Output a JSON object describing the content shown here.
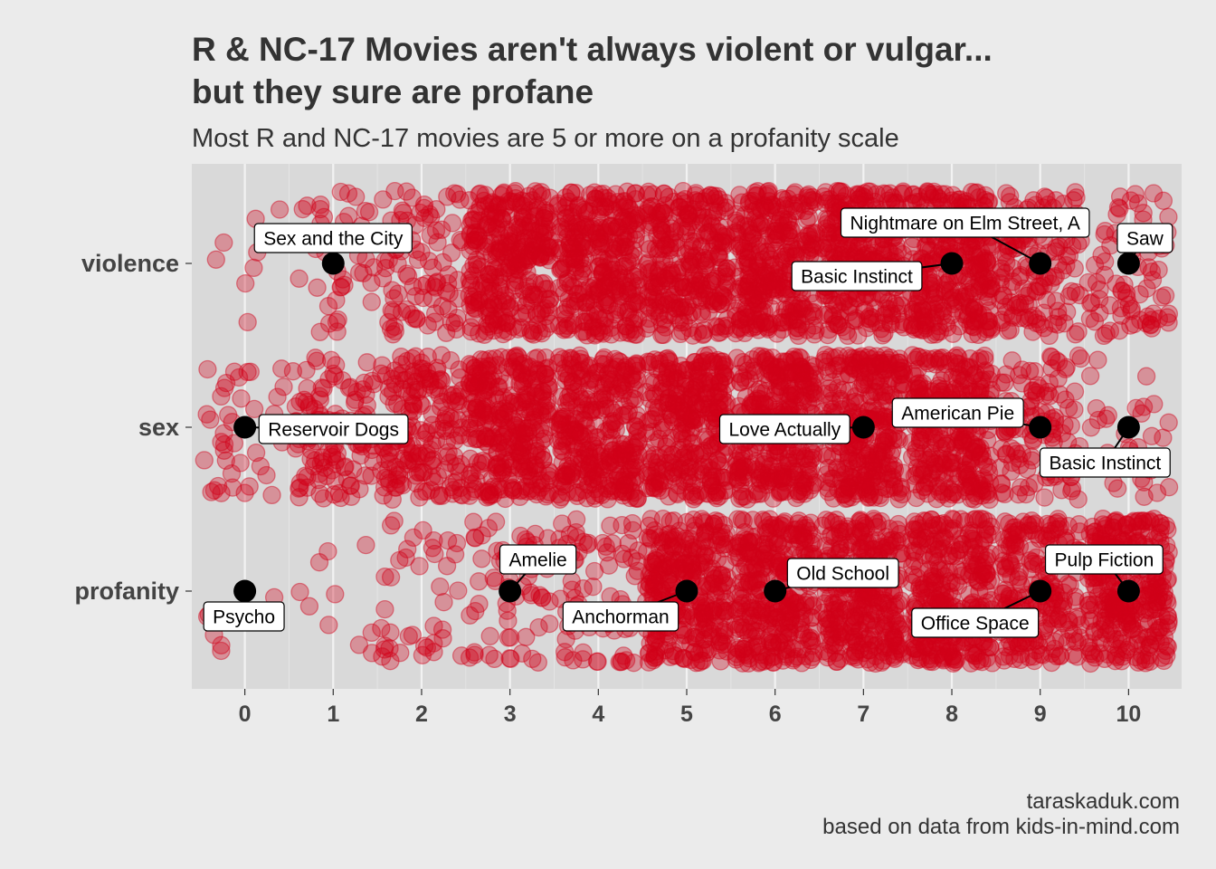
{
  "chart_data": {
    "type": "scatter",
    "title_line1": "R & NC-17 Movies aren't always violent or vulgar...",
    "title_line2": "but they sure are profane",
    "subtitle": "Most R and NC-17 movies are 5 or more on a profanity scale",
    "caption_line1": "taraskaduk.com",
    "caption_line2": "based on data from kids-in-mind.com",
    "xlabel": "",
    "ylabel": "",
    "xlim": [
      -0.6,
      10.6
    ],
    "x_ticks": [
      "0",
      "1",
      "2",
      "3",
      "4",
      "5",
      "6",
      "7",
      "8",
      "9",
      "10"
    ],
    "categories": [
      "violence",
      "sex",
      "profanity"
    ],
    "grid": true,
    "point_color": "#d10018",
    "highlight_color": "#000000",
    "panel_color": "#d9d9d9",
    "background_color": "#ebebeb",
    "approx_counts": {
      "violence": [
        8,
        40,
        90,
        320,
        320,
        300,
        320,
        320,
        330,
        150,
        80
      ],
      "sex": [
        40,
        120,
        190,
        320,
        320,
        320,
        330,
        330,
        300,
        120,
        30
      ],
      "profanity": [
        6,
        10,
        40,
        60,
        70,
        330,
        330,
        330,
        320,
        230,
        330
      ]
    },
    "highlighted": [
      {
        "category": "violence",
        "x": 1,
        "label": "Sex and the City"
      },
      {
        "category": "violence",
        "x": 8,
        "label": "Basic Instinct"
      },
      {
        "category": "violence",
        "x": 9,
        "label": "Nightmare on Elm Street, A"
      },
      {
        "category": "violence",
        "x": 10,
        "label": "Saw"
      },
      {
        "category": "sex",
        "x": 0,
        "label": "Reservoir Dogs"
      },
      {
        "category": "sex",
        "x": 7,
        "label": "Love Actually"
      },
      {
        "category": "sex",
        "x": 9,
        "label": "American Pie"
      },
      {
        "category": "sex",
        "x": 10,
        "label": "Basic Instinct"
      },
      {
        "category": "profanity",
        "x": 0,
        "label": "Psycho"
      },
      {
        "category": "profanity",
        "x": 3,
        "label": "Amelie"
      },
      {
        "category": "profanity",
        "x": 5,
        "label": "Anchorman"
      },
      {
        "category": "profanity",
        "x": 6,
        "label": "Old School"
      },
      {
        "category": "profanity",
        "x": 9,
        "label": "Office Space"
      },
      {
        "category": "profanity",
        "x": 10,
        "label": "Pulp Fiction"
      }
    ]
  }
}
